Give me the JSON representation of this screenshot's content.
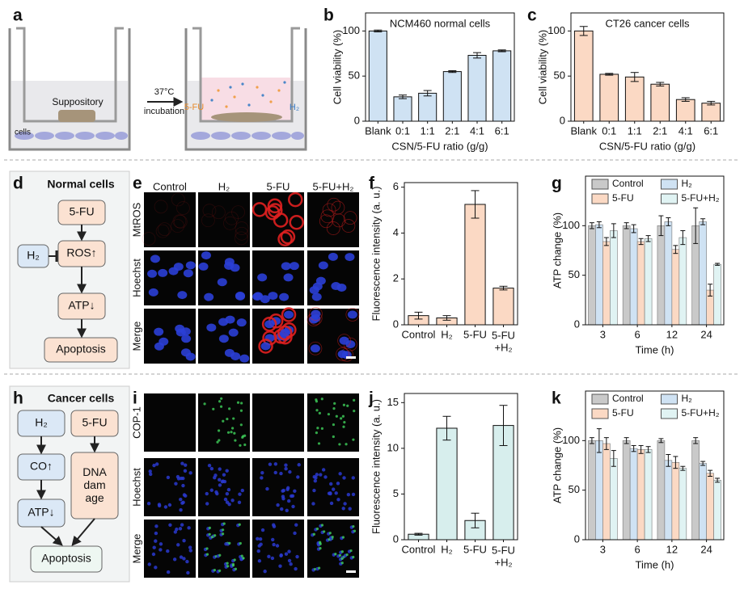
{
  "panel_labels": [
    "a",
    "b",
    "c",
    "d",
    "e",
    "f",
    "g",
    "h",
    "i",
    "j",
    "k"
  ],
  "panel_a": {
    "suppository": "Suppository",
    "temperature": "37°C",
    "incubation": "incubation",
    "drug": "5-FU",
    "gas": "H₂",
    "cells": "cells"
  },
  "panel_d": {
    "title": "Normal cells",
    "nodes": [
      "5-FU",
      "ROS↑",
      "H₂",
      "ATP↓",
      "Apoptosis"
    ]
  },
  "panel_h": {
    "title": "Cancer cells",
    "nodes": [
      "H₂",
      "5-FU",
      "CO↑",
      "DNA\ndam\nage",
      "ATP↓",
      "Apoptosis"
    ]
  },
  "panel_e": {
    "columns": [
      "Control",
      "H₂",
      "5-FU",
      "5-FU+H₂"
    ],
    "rows": [
      "MtROS",
      "Hoechst",
      "Merge"
    ]
  },
  "panel_i": {
    "columns": [
      "Control",
      "H₂",
      "5-FU",
      "5-FU+H₂"
    ],
    "rows": [
      "COP-1",
      "Hoechst",
      "Merge"
    ]
  },
  "chart_data": [
    {
      "type": "bar",
      "title": "NCM460 normal cells",
      "categories": [
        "Blank",
        "0:1",
        "1:1",
        "2:1",
        "4:1",
        "6:1"
      ],
      "values": [
        100,
        27,
        31,
        55,
        73,
        78
      ],
      "errors": [
        1,
        2,
        3,
        1,
        3,
        1
      ],
      "color": "#cfe2f3",
      "ylim": [
        0,
        120
      ],
      "yticks": [
        0,
        50,
        100
      ],
      "ylabel": "Cell viability (%)",
      "xlabel": "CSN/5-FU ratio (g/g)"
    },
    {
      "type": "bar",
      "title": "CT26 cancer cells",
      "categories": [
        "Blank",
        "0:1",
        "1:1",
        "2:1",
        "4:1",
        "6:1"
      ],
      "values": [
        100,
        52,
        49,
        41,
        24,
        20
      ],
      "errors": [
        5,
        1,
        5,
        2,
        2,
        2
      ],
      "color": "#fbd9c4",
      "ylim": [
        0,
        120
      ],
      "yticks": [
        0,
        50,
        100
      ],
      "ylabel": "Cell viability (%)",
      "xlabel": "CSN/5-FU ratio (g/g)"
    },
    {
      "type": "bar",
      "categories": [
        "Control",
        "H₂",
        "5-FU",
        "5-FU\n+H₂"
      ],
      "values": [
        0.4,
        0.3,
        5.25,
        1.6
      ],
      "errors": [
        0.15,
        0.1,
        0.6,
        0.08
      ],
      "color": "#fbd9c4",
      "ylim": [
        0,
        6.2
      ],
      "yticks": [
        0,
        2,
        4,
        6
      ],
      "ylabel": "Fluorescence intensity (a. u.)"
    },
    {
      "type": "grouped_bar",
      "categories": [
        "3",
        "6",
        "12",
        "24"
      ],
      "legend": "top",
      "series": [
        {
          "name": "Control",
          "color": "#c9c9c9",
          "values": [
            100,
            100,
            100,
            100
          ],
          "errors": [
            3,
            3,
            10,
            18
          ]
        },
        {
          "name": "H₂",
          "color": "#cfe2f3",
          "values": [
            101,
            97,
            104,
            104
          ],
          "errors": [
            3,
            4,
            4,
            3
          ]
        },
        {
          "name": "5-FU",
          "color": "#fbd9c4",
          "values": [
            84,
            84,
            76,
            35
          ],
          "errors": [
            4,
            3,
            4,
            6
          ]
        },
        {
          "name": "5-FU+H₂",
          "color": "#e0f3f3",
          "values": [
            95,
            87,
            88,
            61
          ],
          "errors": [
            7,
            3,
            7,
            1
          ]
        }
      ],
      "ylim": [
        0,
        150
      ],
      "yticks": [
        0,
        50,
        100
      ],
      "ylabel": "ATP change (%)",
      "xlabel": "Time (h)"
    },
    {
      "type": "bar",
      "categories": [
        "Control",
        "H₂",
        "5-FU",
        "5-FU\n+H₂"
      ],
      "values": [
        0.6,
        12.2,
        2.1,
        12.5
      ],
      "errors": [
        0.1,
        1.3,
        0.8,
        2.2
      ],
      "color": "#d7eeed",
      "ylim": [
        0,
        16
      ],
      "yticks": [
        0,
        5,
        10,
        15
      ],
      "ylabel": "Fluorescence intensity (a. u.)"
    },
    {
      "type": "grouped_bar",
      "categories": [
        "3",
        "6",
        "12",
        "24"
      ],
      "legend": "top",
      "series": [
        {
          "name": "Control",
          "color": "#c9c9c9",
          "values": [
            100,
            100,
            100,
            100
          ],
          "errors": [
            3,
            3,
            2,
            3
          ]
        },
        {
          "name": "H₂",
          "color": "#cfe2f3",
          "values": [
            100,
            92,
            80,
            77
          ],
          "errors": [
            12,
            3,
            6,
            2
          ]
        },
        {
          "name": "5-FU",
          "color": "#fbd9c4",
          "values": [
            97,
            91,
            78,
            67
          ],
          "errors": [
            6,
            4,
            6,
            3
          ]
        },
        {
          "name": "5-FU+H₂",
          "color": "#e0f3f3",
          "values": [
            82,
            91,
            72,
            60
          ],
          "errors": [
            8,
            3,
            2,
            2
          ]
        }
      ],
      "ylim": [
        0,
        150
      ],
      "yticks": [
        0,
        50,
        100
      ],
      "ylabel": "ATP change (%)",
      "xlabel": "Time (h)"
    }
  ]
}
